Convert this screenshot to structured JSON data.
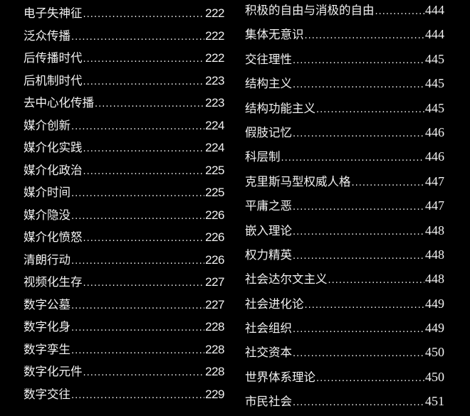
{
  "left_column": [
    {
      "term": "电子失神征",
      "page": "222"
    },
    {
      "term": "泛众传播",
      "page": "222"
    },
    {
      "term": "后传播时代",
      "page": "222"
    },
    {
      "term": "后机制时代",
      "page": "223"
    },
    {
      "term": "去中心化传播",
      "page": "223"
    },
    {
      "term": "媒介创新",
      "page": "224"
    },
    {
      "term": "媒介化实践",
      "page": "224"
    },
    {
      "term": "媒介化政治",
      "page": "225"
    },
    {
      "term": "媒介时间",
      "page": "225"
    },
    {
      "term": "媒介隐没",
      "page": "226"
    },
    {
      "term": "媒介化愤怒",
      "page": "226"
    },
    {
      "term": "清朗行动",
      "page": "226"
    },
    {
      "term": "视频化生存",
      "page": "227"
    },
    {
      "term": "数字公墓",
      "page": "227"
    },
    {
      "term": "数字化身",
      "page": "228"
    },
    {
      "term": "数字孪生",
      "page": "228"
    },
    {
      "term": "数字化元件",
      "page": "228"
    },
    {
      "term": "数字交往",
      "page": "229"
    }
  ],
  "right_column": [
    {
      "term": "积极的自由与消极的自由",
      "page": "444"
    },
    {
      "term": "集体无意识",
      "page": "444"
    },
    {
      "term": "交往理性",
      "page": "445"
    },
    {
      "term": "结构主义",
      "page": "445"
    },
    {
      "term": "结构功能主义",
      "page": "445"
    },
    {
      "term": "假肢记忆",
      "page": "446"
    },
    {
      "term": "科层制",
      "page": "446"
    },
    {
      "term": "克里斯马型权威人格",
      "page": "447"
    },
    {
      "term": "平庸之恶",
      "page": "447"
    },
    {
      "term": "嵌入理论",
      "page": "448"
    },
    {
      "term": "权力精英",
      "page": "448"
    },
    {
      "term": "社会达尔文主义",
      "page": "448"
    },
    {
      "term": "社会进化论",
      "page": "449"
    },
    {
      "term": "社会组织",
      "page": "449"
    },
    {
      "term": "社交资本",
      "page": "450"
    },
    {
      "term": "世界体系理论",
      "page": "450"
    },
    {
      "term": "市民社会",
      "page": "451"
    }
  ]
}
